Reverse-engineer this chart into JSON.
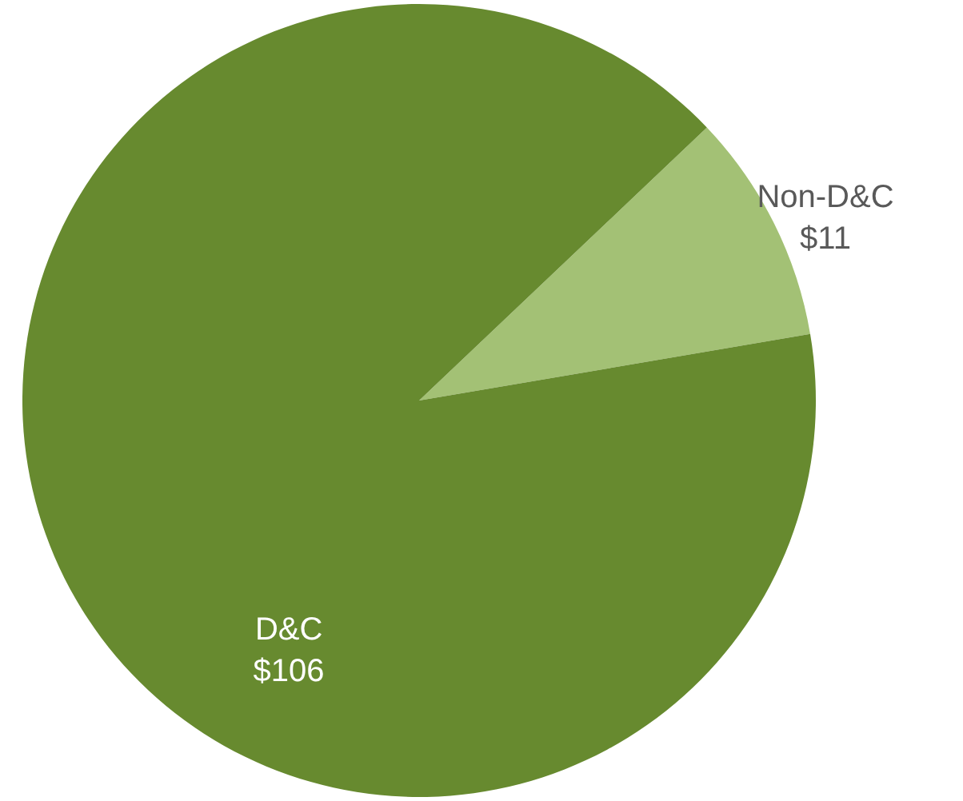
{
  "chart_data": {
    "type": "pie",
    "categories": [
      "Non-D&C",
      "D&C"
    ],
    "values": [
      11,
      106
    ],
    "colors": [
      "#a3c175",
      "#678a2f"
    ],
    "value_labels": [
      "$11",
      "$106"
    ]
  }
}
